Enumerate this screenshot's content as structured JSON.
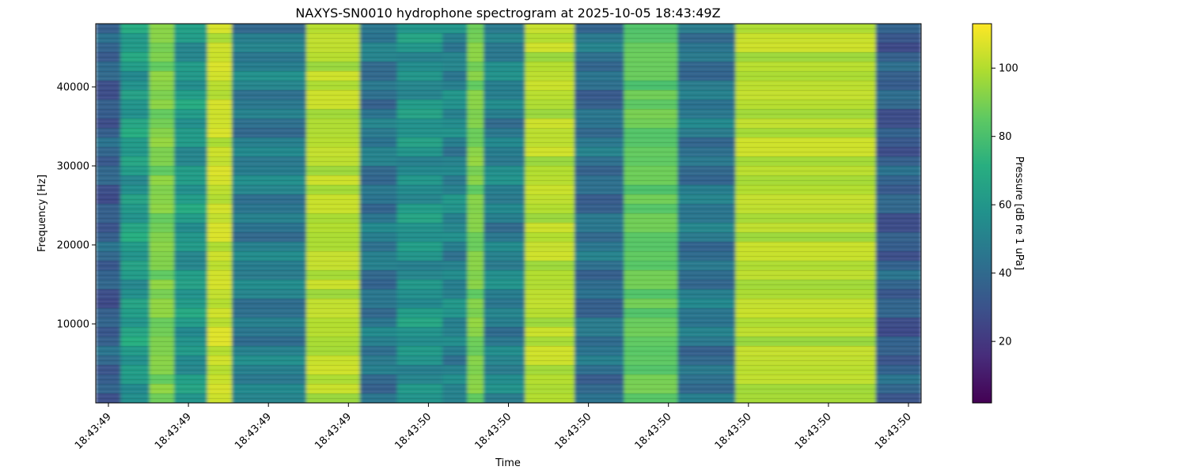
{
  "chart_data": {
    "type": "heatmap",
    "title": "NAXYS-SN0010 hydrophone spectrogram at 2025-10-05 18:43:49Z",
    "xlabel": "Time",
    "ylabel": "Frequency [Hz]",
    "colorbar_label": "Pressure [dB re 1 uPa]",
    "colormap": "viridis",
    "ylim": [
      0,
      48000
    ],
    "y_ticks": [
      10000,
      20000,
      30000,
      40000
    ],
    "x_ticks": [
      "18:43:49",
      "18:43:49",
      "18:43:49",
      "18:43:49",
      "18:43:50",
      "18:43:50",
      "18:43:50",
      "18:43:50",
      "18:43:50",
      "18:43:50",
      "18:43:50"
    ],
    "clim": [
      2,
      113
    ],
    "colorbar_ticks": [
      20,
      40,
      60,
      80,
      100
    ],
    "grid": false,
    "time_bands": [
      {
        "start": 0.0,
        "end": 0.03,
        "level": 35
      },
      {
        "start": 0.03,
        "end": 0.065,
        "level": 62
      },
      {
        "start": 0.065,
        "end": 0.095,
        "level": 95
      },
      {
        "start": 0.095,
        "end": 0.135,
        "level": 60
      },
      {
        "start": 0.135,
        "end": 0.165,
        "level": 108
      },
      {
        "start": 0.165,
        "end": 0.255,
        "level": 48
      },
      {
        "start": 0.255,
        "end": 0.32,
        "level": 105
      },
      {
        "start": 0.32,
        "end": 0.365,
        "level": 45
      },
      {
        "start": 0.365,
        "end": 0.42,
        "level": 58
      },
      {
        "start": 0.42,
        "end": 0.45,
        "level": 52
      },
      {
        "start": 0.45,
        "end": 0.47,
        "level": 95
      },
      {
        "start": 0.47,
        "end": 0.52,
        "level": 50
      },
      {
        "start": 0.52,
        "end": 0.58,
        "level": 105
      },
      {
        "start": 0.58,
        "end": 0.64,
        "level": 42
      },
      {
        "start": 0.64,
        "end": 0.705,
        "level": 90
      },
      {
        "start": 0.705,
        "end": 0.775,
        "level": 45
      },
      {
        "start": 0.775,
        "end": 0.945,
        "level": 105
      },
      {
        "start": 0.945,
        "end": 1.0,
        "level": 35
      }
    ]
  }
}
